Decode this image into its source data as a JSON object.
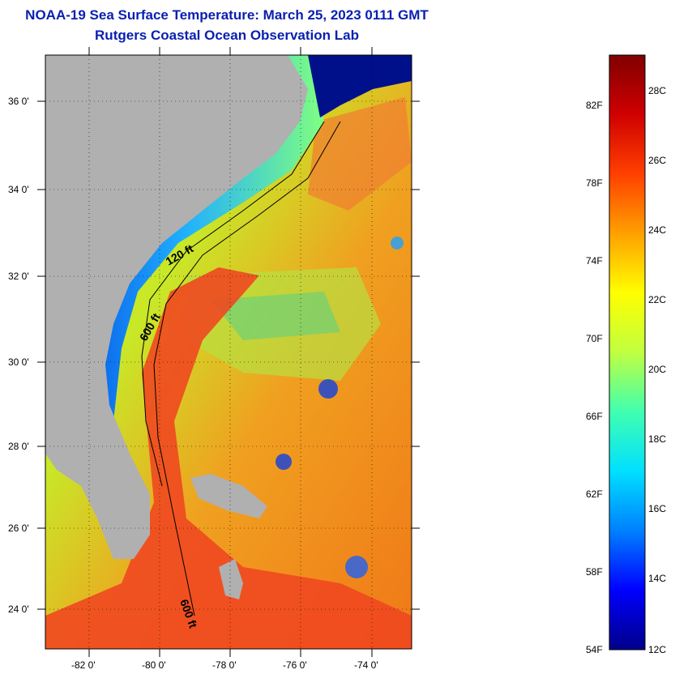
{
  "header": {
    "title": "NOAA-19 Sea Surface Temperature:  March 25, 2023 0111 GMT",
    "subtitle": "Rutgers Coastal Ocean Observation Lab"
  },
  "map": {
    "lat_ticks": [
      "36 0'",
      "34 0'",
      "32 0'",
      "30 0'",
      "28 0'",
      "26 0'",
      "24 0'"
    ],
    "lon_ticks": [
      "-82 0'",
      "-80 0'",
      "-78 0'",
      "-76 0'",
      "-74 0'"
    ],
    "contour_labels": [
      "120 ft",
      "600 ft",
      "600 ft"
    ],
    "land_color": "#b0b0b0",
    "coastal_cold_color": "#1a6ae0",
    "gulf_stream_color": "#f05020"
  },
  "colorbar": {
    "fahrenheit_labels": [
      "82F",
      "78F",
      "74F",
      "70F",
      "66F",
      "62F",
      "58F",
      "54F"
    ],
    "celsius_labels": [
      "28C",
      "26C",
      "24C",
      "22C",
      "20C",
      "18C",
      "16C",
      "14C",
      "12C"
    ],
    "colors": [
      "#00008a",
      "#0000ff",
      "#0080ff",
      "#00e0ff",
      "#40ffb0",
      "#c0ff40",
      "#ffff00",
      "#ffa000",
      "#ff4000",
      "#d00000",
      "#800000"
    ]
  }
}
